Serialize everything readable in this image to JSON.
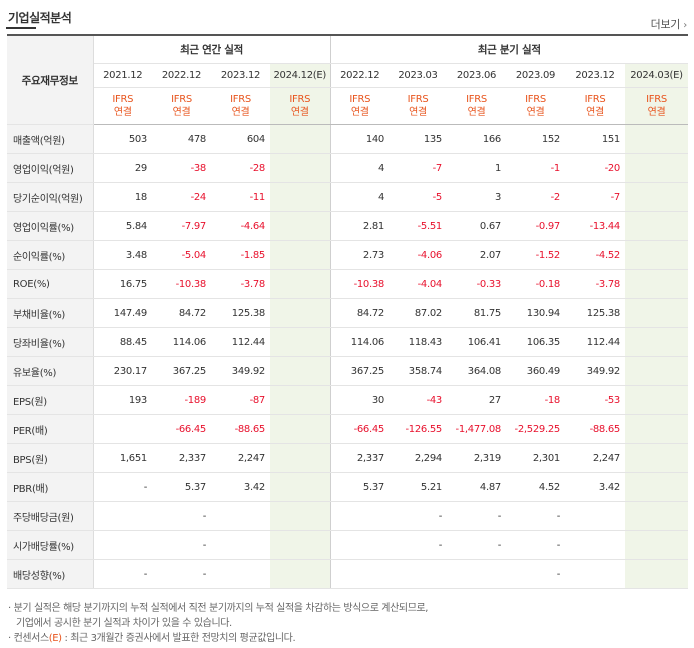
{
  "header": {
    "title": "기업실적분석",
    "more_label": "더보기",
    "more_arrow": "›"
  },
  "table": {
    "row_header": "주요재무정보",
    "groups": {
      "annual": "최근 연간 실적",
      "quarter": "최근 분기 실적"
    },
    "years": [
      "2021.12",
      "2022.12",
      "2023.12",
      "2024.12(E)",
      "2022.12",
      "2023.03",
      "2023.06",
      "2023.09",
      "2023.12",
      "2024.03(E)"
    ],
    "std_line1": "IFRS",
    "std_line2": "연결",
    "rows": [
      {
        "label": "매출액(억원)",
        "values": [
          "503",
          "478",
          "604",
          "",
          "140",
          "135",
          "166",
          "152",
          "151",
          ""
        ]
      },
      {
        "label": "영업이익(억원)",
        "values": [
          "29",
          "-38",
          "-28",
          "",
          "4",
          "-7",
          "1",
          "-1",
          "-20",
          ""
        ]
      },
      {
        "label": "당기순이익(억원)",
        "values": [
          "18",
          "-24",
          "-11",
          "",
          "4",
          "-5",
          "3",
          "-2",
          "-7",
          ""
        ]
      },
      {
        "label": "영업이익률(%)",
        "values": [
          "5.84",
          "-7.97",
          "-4.64",
          "",
          "2.81",
          "-5.51",
          "0.67",
          "-0.97",
          "-13.44",
          ""
        ]
      },
      {
        "label": "순이익률(%)",
        "values": [
          "3.48",
          "-5.04",
          "-1.85",
          "",
          "2.73",
          "-4.06",
          "2.07",
          "-1.52",
          "-4.52",
          ""
        ]
      },
      {
        "label": "ROE(%)",
        "values": [
          "16.75",
          "-10.38",
          "-3.78",
          "",
          "-10.38",
          "-4.04",
          "-0.33",
          "-0.18",
          "-3.78",
          ""
        ]
      },
      {
        "label": "부채비율(%)",
        "values": [
          "147.49",
          "84.72",
          "125.38",
          "",
          "84.72",
          "87.02",
          "81.75",
          "130.94",
          "125.38",
          ""
        ]
      },
      {
        "label": "당좌비율(%)",
        "values": [
          "88.45",
          "114.06",
          "112.44",
          "",
          "114.06",
          "118.43",
          "106.41",
          "106.35",
          "112.44",
          ""
        ]
      },
      {
        "label": "유보율(%)",
        "values": [
          "230.17",
          "367.25",
          "349.92",
          "",
          "367.25",
          "358.74",
          "364.08",
          "360.49",
          "349.92",
          ""
        ]
      },
      {
        "label": "EPS(원)",
        "values": [
          "193",
          "-189",
          "-87",
          "",
          "30",
          "-43",
          "27",
          "-18",
          "-53",
          ""
        ]
      },
      {
        "label": "PER(배)",
        "values": [
          "",
          "-66.45",
          "-88.65",
          "",
          "-66.45",
          "-126.55",
          "-1,477.08",
          "-2,529.25",
          "-88.65",
          ""
        ]
      },
      {
        "label": "BPS(원)",
        "values": [
          "1,651",
          "2,337",
          "2,247",
          "",
          "2,337",
          "2,294",
          "2,319",
          "2,301",
          "2,247",
          ""
        ]
      },
      {
        "label": "PBR(배)",
        "values": [
          "-",
          "5.37",
          "3.42",
          "",
          "5.37",
          "5.21",
          "4.87",
          "4.52",
          "3.42",
          ""
        ]
      },
      {
        "label": "주당배당금(원)",
        "values": [
          "",
          "-",
          "",
          "",
          "",
          "-",
          "-",
          "-",
          "",
          ""
        ]
      },
      {
        "label": "시가배당률(%)",
        "values": [
          "",
          "-",
          "",
          "",
          "",
          "-",
          "-",
          "-",
          "",
          ""
        ]
      },
      {
        "label": "배당성향(%)",
        "values": [
          "-",
          "-",
          "",
          "",
          "",
          "",
          "",
          "-",
          "",
          ""
        ]
      }
    ]
  },
  "notes": {
    "line1": "분기 실적은 해당 분기까지의 누적 실적에서 직전 분기까지의 누적 실적을 차감하는 방식으로 계산되므로,",
    "line2": "기업에서 공시한 분기 실적과 차이가 있을 수 있습니다.",
    "line3_pre": "컨센서스",
    "line3_e": "(E)",
    "line3_post": " : 최근 3개월간 증권사에서 발표한 전망치의 평균값입니다."
  }
}
